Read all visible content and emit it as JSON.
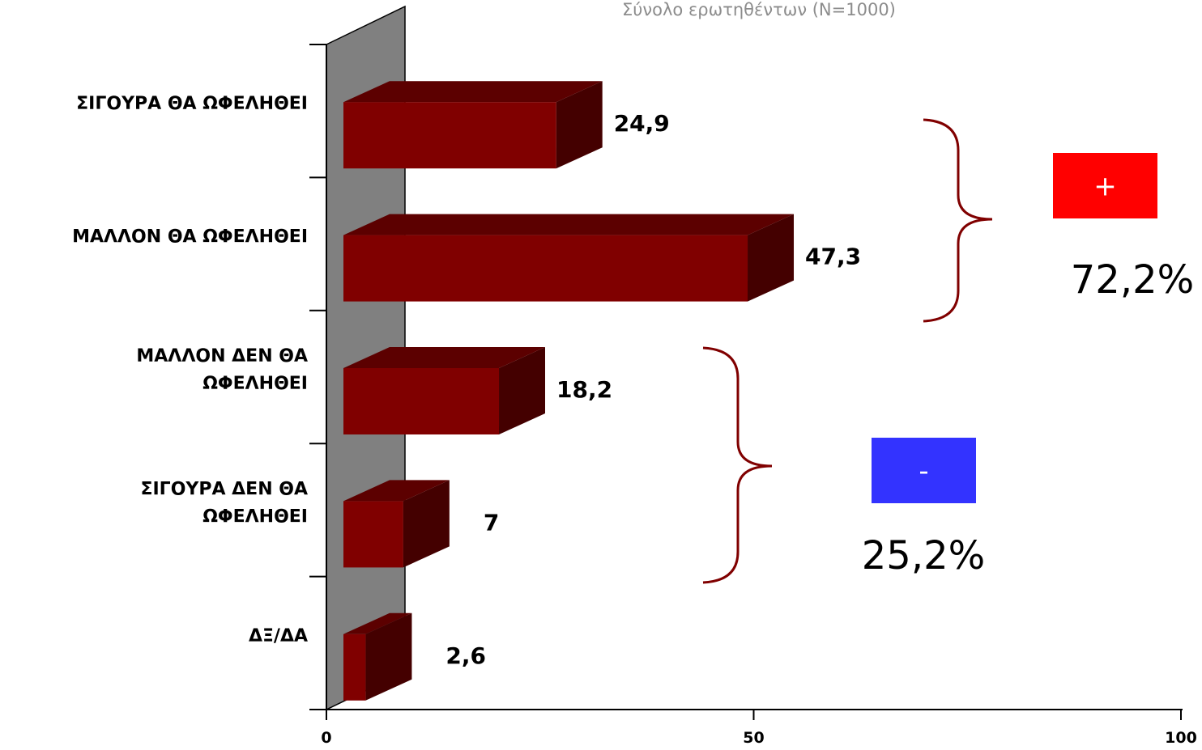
{
  "subtitle": "Σύνολο ερωτηθέντων (Ν=1000)",
  "chart_data": {
    "type": "bar",
    "orientation": "horizontal",
    "style": "3d",
    "categories": [
      [
        "ΣΙΓΟΥΡΑ ΘΑ ΩΦΕΛΗΘΕΙ"
      ],
      [
        "ΜΑΛΛΟΝ ΘΑ ΩΦΕΛΗΘΕΙ"
      ],
      [
        "ΜΑΛΛΟΝ ΔΕΝ ΘΑ",
        "ΩΦΕΛΗΘΕΙ"
      ],
      [
        "ΣΙΓΟΥΡΑ ΔΕΝ ΘΑ",
        "ΩΦΕΛΗΘΕΙ"
      ],
      [
        "ΔΞ/ΔΑ"
      ]
    ],
    "values": [
      24.9,
      47.3,
      18.2,
      7,
      2.6
    ],
    "value_labels": [
      "24,9",
      "47,3",
      "18,2",
      "7",
      "2,6"
    ],
    "xlim": [
      0,
      100
    ],
    "xticks": [
      0,
      50,
      100
    ],
    "xtick_labels": [
      "0",
      "50",
      "100"
    ],
    "bar_color": "#800000",
    "bar_top_color": "#5c0000",
    "bar_side_color": "#440000",
    "wall_color": "#808080",
    "grid": false,
    "legend": false
  },
  "groups": [
    {
      "symbol": "+",
      "label": "72,2%",
      "badge_color": "#ff0000",
      "bars": [
        0,
        1
      ]
    },
    {
      "symbol": "-",
      "label": "25,2%",
      "badge_color": "#3333ff",
      "bars": [
        2,
        3
      ]
    }
  ]
}
